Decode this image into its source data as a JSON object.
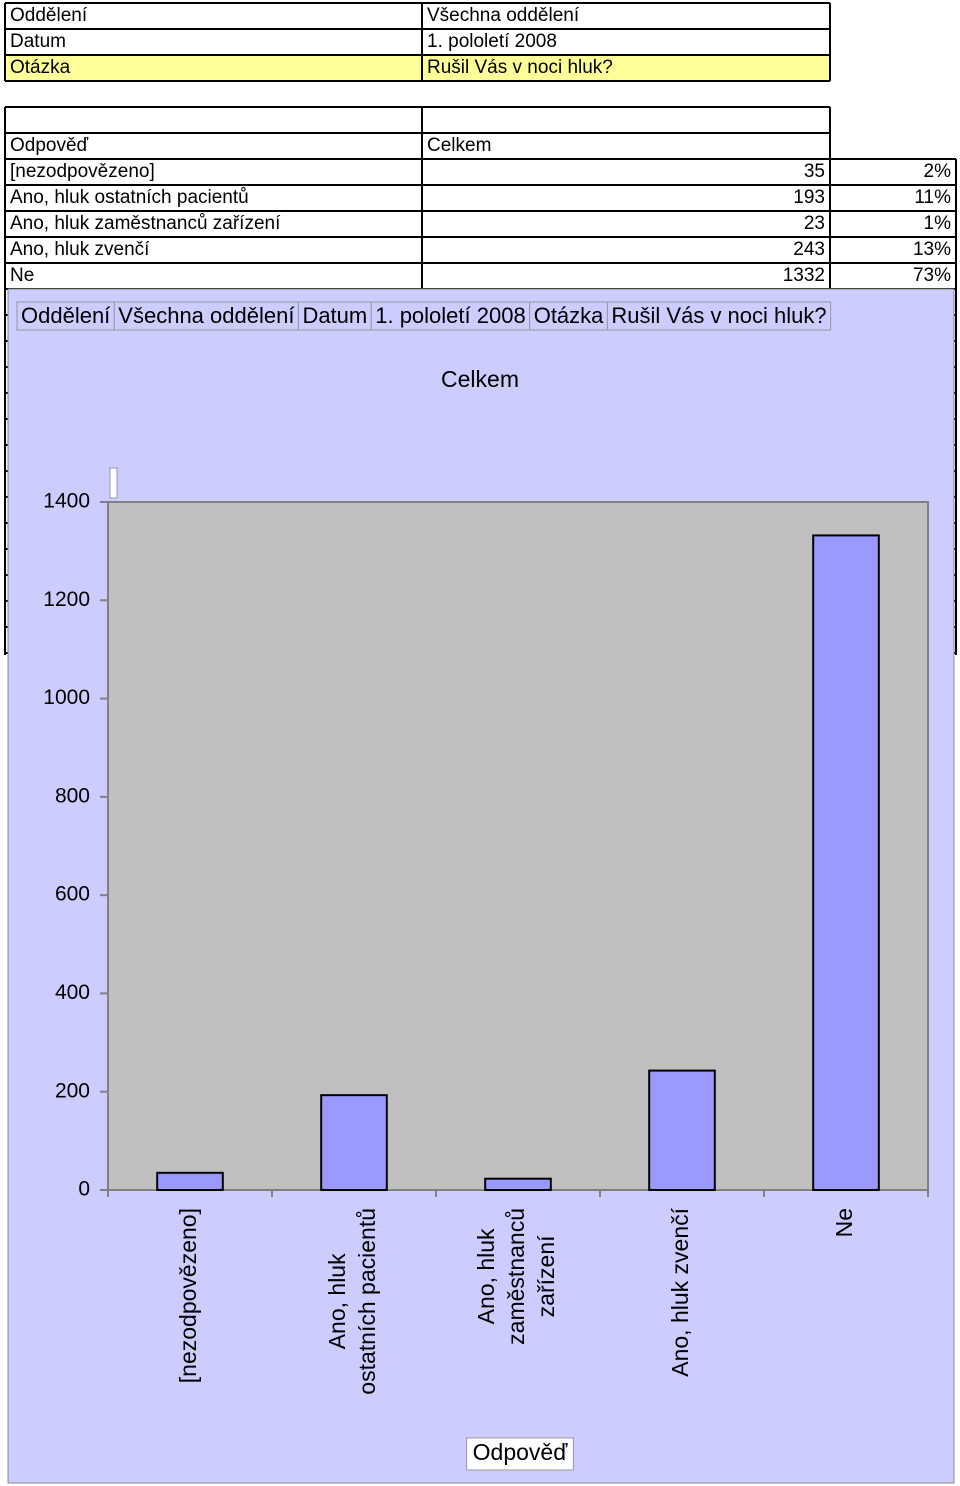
{
  "header": {
    "rows": [
      [
        "Oddělení",
        "Všechna oddělení"
      ],
      [
        "Datum",
        "1. pololetí 2008"
      ],
      [
        "Otázka",
        "Rušil Vás v noci hluk?"
      ]
    ]
  },
  "table": {
    "columns": [
      "Odpověď",
      "Celkem"
    ],
    "rows": [
      [
        "[nezodpovězeno]",
        35,
        "2%"
      ],
      [
        "Ano, hluk ostatních pacientů",
        193,
        "11%"
      ],
      [
        "Ano, hluk zaměstnanců zařízení",
        23,
        "1%"
      ],
      [
        "Ano, hluk zvenčí",
        243,
        "13%"
      ],
      [
        "Ne",
        1332,
        "73%"
      ]
    ]
  },
  "chart_data": {
    "type": "bar",
    "title": "Celkem",
    "x_label": "Odpověď",
    "categories": [
      "[nezodpovězeno]",
      "Ano, hluk ostatních pacientů",
      "Ano, hluk zaměstnanců zařízení",
      "Ano, hluk zvenčí",
      "Ne"
    ],
    "values": [
      35,
      193,
      23,
      243,
      1332
    ],
    "color": "#9999ff",
    "ylim": [
      0,
      1400
    ],
    "yticks": [
      0,
      200,
      400,
      600,
      800,
      1000,
      1200,
      1400
    ],
    "grid": false
  }
}
